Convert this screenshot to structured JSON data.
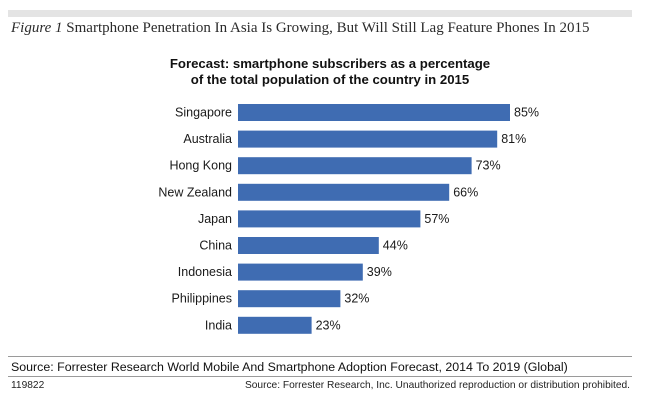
{
  "figure": {
    "label": "Figure 1",
    "title": "Smartphone Penetration In Asia Is Growing, But Will Still Lag Feature Phones In 2015"
  },
  "chart_data": {
    "type": "bar",
    "orientation": "horizontal",
    "title_line1": "Forecast: smartphone subscribers as a percentage",
    "title_line2": "of the total population of the country in 2015",
    "categories": [
      "Singapore",
      "Australia",
      "Hong Kong",
      "New Zealand",
      "Japan",
      "China",
      "Indonesia",
      "Philippines",
      "India"
    ],
    "values": [
      85,
      81,
      73,
      66,
      57,
      44,
      39,
      32,
      23
    ],
    "labels": [
      "85%",
      "81%",
      "73%",
      "66%",
      "57%",
      "44%",
      "39%",
      "32%",
      "23%"
    ],
    "xlim": [
      0,
      100
    ],
    "bar_color": "#3f6cb2",
    "grid": false
  },
  "footer": {
    "source": "Source: Forrester Research World Mobile And Smartphone Adoption Forecast, 2014 To 2019 (Global)",
    "figure_id": "119822",
    "copyright": "Source: Forrester Research, Inc. Unauthorized reproduction or distribution prohibited."
  }
}
